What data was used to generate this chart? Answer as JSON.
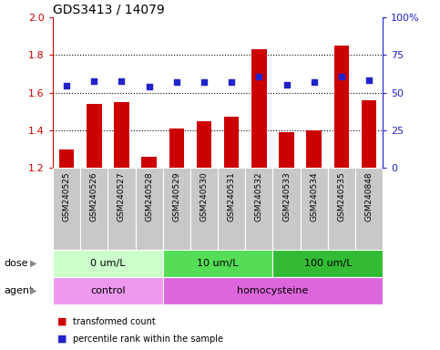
{
  "title": "GDS3413 / 14079",
  "samples": [
    "GSM240525",
    "GSM240526",
    "GSM240527",
    "GSM240528",
    "GSM240529",
    "GSM240530",
    "GSM240531",
    "GSM240532",
    "GSM240533",
    "GSM240534",
    "GSM240535",
    "GSM240848"
  ],
  "red_values": [
    1.3,
    1.54,
    1.55,
    1.26,
    1.41,
    1.45,
    1.47,
    1.83,
    1.39,
    1.4,
    1.85,
    1.56
  ],
  "blue_values": [
    1.635,
    1.66,
    1.66,
    1.63,
    1.655,
    1.655,
    1.655,
    1.685,
    1.64,
    1.655,
    1.685,
    1.665
  ],
  "ylim_left": [
    1.2,
    2.0
  ],
  "ylim_right": [
    0,
    100
  ],
  "yticks_left": [
    1.2,
    1.4,
    1.6,
    1.8,
    2.0
  ],
  "yticks_right": [
    0,
    25,
    50,
    75,
    100
  ],
  "ytick_labels_right": [
    "0",
    "25",
    "50",
    "75",
    "100%"
  ],
  "red_color": "#cc0000",
  "blue_color": "#2222cc",
  "bar_width": 0.55,
  "dose_groups": [
    {
      "label": "0 um/L",
      "start": 0,
      "end": 4,
      "color": "#ccffcc"
    },
    {
      "label": "10 um/L",
      "start": 4,
      "end": 8,
      "color": "#55dd55"
    },
    {
      "label": "100 um/L",
      "start": 8,
      "end": 12,
      "color": "#33bb33"
    }
  ],
  "agent_groups": [
    {
      "label": "control",
      "start": 0,
      "end": 4,
      "color": "#ee99ee"
    },
    {
      "label": "homocysteine",
      "start": 4,
      "end": 12,
      "color": "#dd66dd"
    }
  ],
  "dose_label": "dose",
  "agent_label": "agent",
  "legend_red": "transformed count",
  "legend_blue": "percentile rank within the sample",
  "bg_color": "#ffffff",
  "label_area_color": "#c8c8c8",
  "label_border_color": "#ffffff",
  "dotted_yticks": [
    1.4,
    1.6,
    1.8
  ]
}
